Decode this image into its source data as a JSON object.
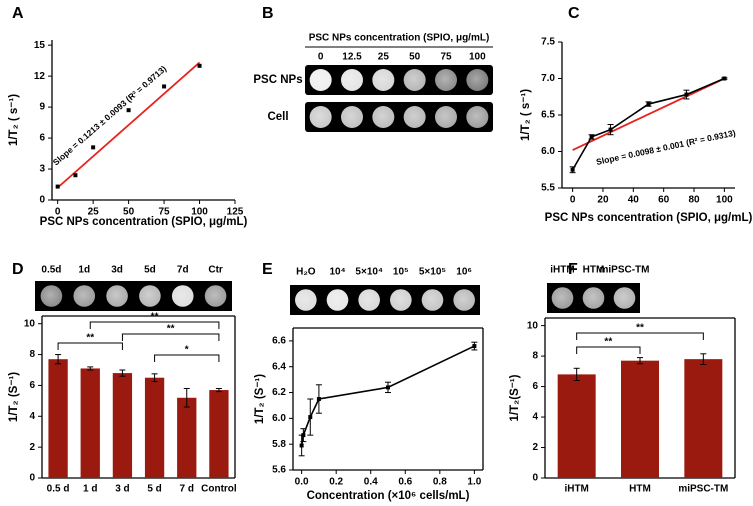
{
  "chart_data": [
    {
      "panel": "A",
      "type": "scatter",
      "x": [
        0,
        12.5,
        25,
        50,
        75,
        100
      ],
      "values": [
        1.3,
        2.4,
        5.1,
        8.7,
        11.0,
        13.0
      ],
      "color": "#000000",
      "xlim": [
        -4,
        125
      ],
      "ylim": [
        0,
        15.5
      ],
      "xticks": [
        0,
        25,
        50,
        75,
        100,
        125
      ],
      "yticks": [
        0,
        3,
        6,
        9,
        12,
        15
      ],
      "xlabel": "PSC NPs concentration (SPIO, μg/mL)",
      "ylabel": "1/T₂ ( s⁻¹)",
      "fit": {
        "x": [
          0,
          100
        ],
        "y": [
          1.2,
          13.33
        ],
        "color": "#e8221c"
      },
      "annotation": "Slope = 0.1213 ± 0.0093 (R² = 0.9713)"
    },
    {
      "panel": "B",
      "type": "image",
      "title": "PSC NPs concentration (SPIO, μg/mL)",
      "columns": [
        "0",
        "12.5",
        "25",
        "50",
        "75",
        "100"
      ],
      "rows": [
        "PSC NPs",
        "Cell"
      ]
    },
    {
      "panel": "C",
      "type": "line",
      "x": [
        0,
        12.5,
        25,
        50,
        75,
        100
      ],
      "values": [
        5.75,
        6.2,
        6.3,
        6.65,
        6.78,
        7.0
      ],
      "errors": [
        0.04,
        0.03,
        0.07,
        0.03,
        0.06,
        0.01
      ],
      "color": "#000000",
      "xlim": [
        -7,
        107
      ],
      "ylim": [
        5.5,
        7.5
      ],
      "xticks": [
        0,
        20,
        40,
        60,
        80,
        100
      ],
      "yticks": [
        5.5,
        {
          "value": 6,
          "label": "6.0"
        },
        6.5,
        {
          "value": 7,
          "label": "7.0"
        },
        7.5
      ],
      "xlabel": "PSC NPs concentration (SPIO, μg/mL)",
      "ylabel": "1/T₂ ( s⁻¹)",
      "fit": {
        "x": [
          0,
          100
        ],
        "y": [
          6.02,
          7.0
        ],
        "color": "#e8221c"
      },
      "annotation": "Slope = 0.0098 ± 0.001 (R² = 0.9313)"
    },
    {
      "panel": "D",
      "type": "bar",
      "categories": [
        "0.5 d",
        "1 d",
        "3 d",
        "5 d",
        "7 d",
        "Control"
      ],
      "values": [
        7.7,
        7.1,
        6.8,
        6.5,
        5.2,
        5.7
      ],
      "errors": [
        0.3,
        0.1,
        0.2,
        0.25,
        0.6,
        0.1
      ],
      "color": "#9b1a10",
      "ylim": [
        0,
        10.5
      ],
      "yticks": [
        0,
        2,
        4,
        6,
        8,
        10
      ],
      "ylabel": "1/T₂ (S⁻¹)",
      "image_labels": [
        "0.5d",
        "1d",
        "3d",
        "5d",
        "7d",
        "Ctr"
      ],
      "brackets": [
        {
          "label": "**",
          "between": [
            "0.5 d",
            "3 d"
          ]
        },
        {
          "label": "**",
          "between": [
            "1 d",
            "Control"
          ]
        },
        {
          "label": "**",
          "between": [
            "3 d",
            "Control"
          ]
        },
        {
          "label": "*",
          "between": [
            "5 d",
            "Control"
          ]
        }
      ]
    },
    {
      "panel": "E",
      "type": "line",
      "x": [
        0,
        0.01,
        0.05,
        0.1,
        0.5,
        1.0
      ],
      "values": [
        5.79,
        5.87,
        6.01,
        6.15,
        6.24,
        6.56
      ],
      "errors": [
        0.08,
        0.05,
        0.14,
        0.11,
        0.04,
        0.03
      ],
      "color": "#000000",
      "xlim": [
        -0.05,
        1.05
      ],
      "ylim": [
        5.6,
        6.7
      ],
      "xticks": [
        {
          "value": 0,
          "label": "0.0"
        },
        0.2,
        0.4,
        0.6,
        0.8,
        {
          "value": 1,
          "label": "1.0"
        }
      ],
      "yticks": [
        5.6,
        5.8,
        {
          "value": 6,
          "label": "6.0"
        },
        6.2,
        6.4,
        6.6
      ],
      "xlabel": "Concentration (×10⁶ cells/mL)",
      "ylabel": "1/T₂ (S⁻¹)",
      "image_labels": [
        "H₂O",
        "10⁴",
        "5×10⁴",
        "10⁵",
        "5×10⁵",
        "10⁶"
      ]
    },
    {
      "panel": "F",
      "type": "bar",
      "categories": [
        "iHTM",
        "HTM",
        "miPSC-TM"
      ],
      "values": [
        6.8,
        7.7,
        7.8
      ],
      "errors": [
        0.4,
        0.2,
        0.35
      ],
      "color": "#9b1a10",
      "ylim": [
        0,
        10.5
      ],
      "yticks": [
        0,
        2,
        4,
        6,
        8,
        10
      ],
      "ylabel": "1/T₂(S⁻¹)",
      "image_labels": [
        "iHTM",
        "HTM",
        "miPSC-TM"
      ],
      "brackets": [
        {
          "label": "**",
          "between": [
            "iHTM",
            "HTM"
          ]
        },
        {
          "label": "**",
          "between": [
            "iHTM",
            "miPSC-TM"
          ]
        }
      ]
    }
  ]
}
